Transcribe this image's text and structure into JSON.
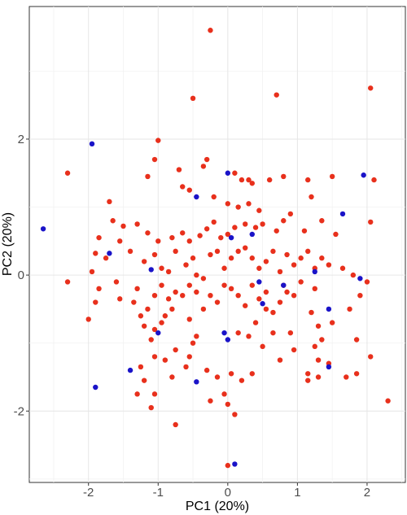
{
  "chart_data": {
    "type": "scatter",
    "xlabel": "PC1 (20%)",
    "ylabel": "PC2 (20%)",
    "xlim": [
      -2.85,
      2.55
    ],
    "ylim": [
      -3.05,
      3.95
    ],
    "xticks": [
      -2,
      -1,
      0,
      1,
      2
    ],
    "yticks": [
      -2,
      0,
      2
    ],
    "grid": true,
    "legend": "none",
    "colors": {
      "red": "#e8301c",
      "blue": "#1a13c8"
    },
    "series": [
      {
        "color": "#e8301c",
        "points": [
          [
            -0.25,
            3.6
          ],
          [
            -0.5,
            2.6
          ],
          [
            0.7,
            2.65
          ],
          [
            2.05,
            2.75
          ],
          [
            -1.0,
            1.98
          ],
          [
            -2.3,
            1.5
          ],
          [
            -0.3,
            1.7
          ],
          [
            -0.35,
            1.6
          ],
          [
            -1.05,
            1.7
          ],
          [
            -0.7,
            1.55
          ],
          [
            -1.15,
            1.45
          ],
          [
            0.1,
            1.5
          ],
          [
            0.2,
            1.4
          ],
          [
            0.3,
            1.4
          ],
          [
            0.35,
            1.35
          ],
          [
            -0.65,
            1.3
          ],
          [
            -0.55,
            1.25
          ],
          [
            -0.2,
            1.15
          ],
          [
            0.0,
            1.05
          ],
          [
            0.15,
            1.0
          ],
          [
            0.3,
            1.05
          ],
          [
            0.45,
            0.95
          ],
          [
            0.6,
            1.4
          ],
          [
            0.8,
            1.45
          ],
          [
            1.15,
            1.4
          ],
          [
            1.2,
            1.15
          ],
          [
            1.5,
            1.45
          ],
          [
            2.1,
            1.4
          ],
          [
            2.05,
            0.78
          ],
          [
            1.35,
            0.8
          ],
          [
            1.1,
            0.65
          ],
          [
            1.55,
            0.6
          ],
          [
            0.9,
            0.9
          ],
          [
            0.8,
            0.8
          ],
          [
            0.7,
            0.65
          ],
          [
            0.5,
            0.75
          ],
          [
            0.4,
            0.7
          ],
          [
            0.25,
            0.75
          ],
          [
            0.1,
            0.7
          ],
          [
            0.0,
            0.6
          ],
          [
            -0.1,
            0.55
          ],
          [
            -0.2,
            0.78
          ],
          [
            -0.3,
            0.68
          ],
          [
            -0.4,
            0.58
          ],
          [
            -0.55,
            0.5
          ],
          [
            -0.65,
            0.62
          ],
          [
            -0.8,
            0.55
          ],
          [
            -1.0,
            0.5
          ],
          [
            -1.15,
            0.62
          ],
          [
            -1.3,
            0.75
          ],
          [
            -1.5,
            0.72
          ],
          [
            -1.65,
            0.8
          ],
          [
            -1.7,
            1.08
          ],
          [
            -1.85,
            0.55
          ],
          [
            -1.55,
            0.5
          ],
          [
            -1.4,
            0.35
          ],
          [
            -1.75,
            0.25
          ],
          [
            -1.9,
            0.32
          ],
          [
            -1.95,
            0.05
          ],
          [
            -2.3,
            -0.1
          ],
          [
            -1.85,
            -0.2
          ],
          [
            -1.6,
            -0.1
          ],
          [
            -1.55,
            -0.35
          ],
          [
            -1.9,
            -0.4
          ],
          [
            -2.0,
            -0.65
          ],
          [
            -1.3,
            -0.2
          ],
          [
            -1.2,
            0.2
          ],
          [
            -1.05,
            0.3
          ],
          [
            -0.95,
            0.1
          ],
          [
            -0.85,
            0.05
          ],
          [
            -0.75,
            0.35
          ],
          [
            -0.6,
            0.15
          ],
          [
            -0.5,
            0.25
          ],
          [
            -0.45,
            0.0
          ],
          [
            -0.35,
            -0.05
          ],
          [
            -0.25,
            0.3
          ],
          [
            -0.15,
            0.35
          ],
          [
            -0.05,
            0.1
          ],
          [
            0.05,
            0.25
          ],
          [
            0.15,
            0.35
          ],
          [
            0.25,
            0.4
          ],
          [
            0.35,
            0.25
          ],
          [
            0.45,
            0.1
          ],
          [
            0.55,
            0.2
          ],
          [
            0.65,
            0.35
          ],
          [
            0.75,
            0.05
          ],
          [
            0.85,
            0.3
          ],
          [
            0.95,
            0.15
          ],
          [
            1.05,
            0.25
          ],
          [
            1.15,
            0.35
          ],
          [
            1.25,
            0.1
          ],
          [
            1.35,
            0.25
          ],
          [
            1.45,
            0.15
          ],
          [
            1.25,
            -0.2
          ],
          [
            1.05,
            -0.1
          ],
          [
            0.95,
            -0.3
          ],
          [
            0.85,
            -0.25
          ],
          [
            0.75,
            -0.4
          ],
          [
            0.65,
            -0.55
          ],
          [
            0.55,
            -0.25
          ],
          [
            0.45,
            -0.35
          ],
          [
            0.35,
            -0.15
          ],
          [
            0.25,
            -0.45
          ],
          [
            0.15,
            -0.3
          ],
          [
            0.05,
            -0.2
          ],
          [
            -0.05,
            -0.15
          ],
          [
            -0.15,
            -0.4
          ],
          [
            -0.25,
            -0.3
          ],
          [
            -0.35,
            -0.5
          ],
          [
            -0.45,
            -0.25
          ],
          [
            -0.55,
            -0.15
          ],
          [
            -0.65,
            -0.3
          ],
          [
            -0.75,
            -0.25
          ],
          [
            -0.85,
            -0.35
          ],
          [
            -0.95,
            -0.15
          ],
          [
            -1.05,
            -0.3
          ],
          [
            -1.15,
            -0.5
          ],
          [
            -1.25,
            -0.6
          ],
          [
            -1.35,
            -0.4
          ],
          [
            -0.9,
            -0.6
          ],
          [
            -0.8,
            -0.5
          ],
          [
            -0.95,
            -0.7
          ],
          [
            -1.05,
            -0.8
          ],
          [
            -1.1,
            -0.95
          ],
          [
            -1.2,
            -0.75
          ],
          [
            -0.55,
            -0.65
          ],
          [
            -0.45,
            -0.9
          ],
          [
            -0.5,
            -1.0
          ],
          [
            -0.55,
            -1.2
          ],
          [
            -0.75,
            -1.1
          ],
          [
            -0.9,
            -1.25
          ],
          [
            -1.05,
            -1.2
          ],
          [
            -1.25,
            -1.35
          ],
          [
            -1.2,
            -1.55
          ],
          [
            -1.3,
            -1.75
          ],
          [
            -1.05,
            -1.75
          ],
          [
            -0.8,
            -1.5
          ],
          [
            -0.6,
            -1.35
          ],
          [
            -0.3,
            -1.4
          ],
          [
            -0.15,
            -1.5
          ],
          [
            0.05,
            -1.45
          ],
          [
            0.2,
            -1.55
          ],
          [
            -0.05,
            -1.75
          ],
          [
            0.0,
            -1.9
          ],
          [
            0.1,
            -2.05
          ],
          [
            -0.75,
            -2.2
          ],
          [
            -1.1,
            -1.95
          ],
          [
            0.15,
            -0.85
          ],
          [
            0.3,
            -0.9
          ],
          [
            0.4,
            -0.7
          ],
          [
            0.5,
            -1.05
          ],
          [
            0.65,
            -0.85
          ],
          [
            0.75,
            -1.25
          ],
          [
            0.9,
            -0.85
          ],
          [
            0.95,
            -1.1
          ],
          [
            1.2,
            -0.55
          ],
          [
            1.3,
            -0.75
          ],
          [
            1.25,
            -1.05
          ],
          [
            1.3,
            -1.25
          ],
          [
            1.15,
            -1.45
          ],
          [
            1.15,
            -1.55
          ],
          [
            1.3,
            -1.5
          ],
          [
            1.45,
            -1.3
          ],
          [
            1.35,
            -0.95
          ],
          [
            1.5,
            -0.7
          ],
          [
            1.75,
            -0.5
          ],
          [
            1.85,
            -0.95
          ],
          [
            1.9,
            -0.3
          ],
          [
            1.8,
            0.0
          ],
          [
            1.65,
            0.1
          ],
          [
            2.0,
            -0.1
          ],
          [
            1.85,
            -1.45
          ],
          [
            2.05,
            -1.2
          ],
          [
            2.3,
            -1.85
          ],
          [
            1.7,
            -1.5
          ],
          [
            0.0,
            -2.8
          ],
          [
            0.35,
            -1.45
          ],
          [
            0.55,
            -0.5
          ],
          [
            0.8,
            -0.15
          ],
          [
            -0.25,
            -1.85
          ]
        ]
      },
      {
        "color": "#1a13c8",
        "points": [
          [
            -1.95,
            1.93
          ],
          [
            -2.65,
            0.68
          ],
          [
            0.0,
            1.5
          ],
          [
            -0.45,
            1.15
          ],
          [
            1.95,
            1.47
          ],
          [
            1.65,
            0.9
          ],
          [
            -1.7,
            0.32
          ],
          [
            -1.1,
            0.08
          ],
          [
            0.05,
            0.55
          ],
          [
            0.35,
            0.6
          ],
          [
            0.45,
            -0.1
          ],
          [
            0.8,
            -0.15
          ],
          [
            1.25,
            0.05
          ],
          [
            1.9,
            -0.05
          ],
          [
            1.45,
            -0.5
          ],
          [
            0.5,
            -0.42
          ],
          [
            -0.05,
            -0.85
          ],
          [
            0.0,
            -0.95
          ],
          [
            -1.0,
            -0.85
          ],
          [
            -1.4,
            -1.4
          ],
          [
            -1.9,
            -1.65
          ],
          [
            -0.45,
            -1.57
          ],
          [
            1.45,
            -1.35
          ],
          [
            0.1,
            -2.78
          ]
        ]
      }
    ]
  }
}
